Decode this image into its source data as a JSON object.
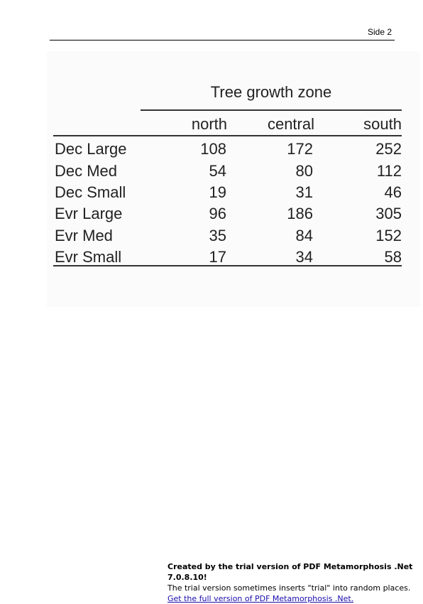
{
  "page": {
    "number_label": "Side 2"
  },
  "table": {
    "spanner": "Tree growth zone",
    "columns": [
      "north",
      "central",
      "south"
    ],
    "rows": [
      {
        "label": "Dec Large",
        "values": [
          "108",
          "172",
          "252"
        ]
      },
      {
        "label": "Dec Med",
        "values": [
          "54",
          "80",
          "112"
        ]
      },
      {
        "label": "Dec Small",
        "values": [
          "19",
          "31",
          "46"
        ]
      },
      {
        "label": "Evr Large",
        "values": [
          "96",
          "186",
          "305"
        ]
      },
      {
        "label": "Evr Med",
        "values": [
          "35",
          "84",
          "152"
        ]
      },
      {
        "label": "Evr Small",
        "values": [
          "17",
          "34",
          "58"
        ]
      }
    ]
  },
  "footer": {
    "line1": "Created by the trial version of PDF Metamorphosis .Net 7.0.8.10!",
    "line2": "The trial version sometimes inserts \"trial\" into random places.",
    "link": "Get the full version of PDF Metamorphosis .Net."
  }
}
